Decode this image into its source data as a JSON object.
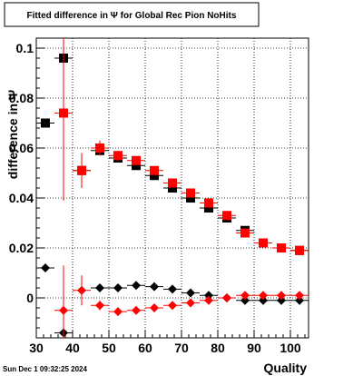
{
  "stamp": "Sun Dec  1 09:32:25 2024",
  "chart_data": {
    "type": "scatter",
    "title": "Fitted difference in  Ψ  for Global Rec Pion NoHits",
    "xlabel": "Quality",
    "ylabel": "difference in  Ψ",
    "xlim": [
      30,
      105
    ],
    "ylim": [
      -0.016,
      0.104
    ],
    "xticks": [
      30,
      40,
      50,
      60,
      70,
      80,
      90,
      100
    ],
    "yticks": [
      0,
      0.02,
      0.04,
      0.06,
      0.08,
      0.1
    ],
    "ytick_labels": [
      "0",
      "0.02",
      "0.04",
      "0.06",
      "0.08",
      "0.1"
    ],
    "grid": true,
    "series": [
      {
        "marker": "square",
        "color": "#000000",
        "x": [
          32.5,
          37.5,
          42.5,
          47.5,
          52.5,
          57.5,
          62.5,
          67.5,
          72.5,
          77.5,
          82.5,
          87.5,
          92.5,
          97.5,
          102.5
        ],
        "y": [
          0.07,
          0.096,
          0.051,
          0.059,
          0.056,
          0.053,
          0.049,
          0.044,
          0.04,
          0.036,
          0.032,
          0.027,
          0.022,
          0.02,
          0.019
        ],
        "yerr": [
          0,
          0.002,
          0.003,
          0.002,
          0.0015,
          0.0015,
          0.0015,
          0.0015,
          0.0015,
          0.0015,
          0.0015,
          0.0015,
          0.0015,
          0.0015,
          0.0015
        ]
      },
      {
        "marker": "square",
        "color": "#ff0000",
        "x": [
          37.5,
          42.5,
          47.5,
          52.5,
          57.5,
          62.5,
          67.5,
          72.5,
          77.5,
          82.5,
          87.5,
          92.5,
          97.5,
          102.5
        ],
        "y": [
          0.074,
          0.051,
          0.06,
          0.057,
          0.055,
          0.051,
          0.046,
          0.042,
          0.038,
          0.033,
          0.026,
          0.022,
          0.02,
          0.019
        ],
        "yerr": [
          0.035,
          0.007,
          0.003,
          0.002,
          0.0015,
          0.0015,
          0.0015,
          0.0015,
          0.0015,
          0.0015,
          0.0015,
          0.0015,
          0.0015,
          0.0015
        ]
      },
      {
        "marker": "diamond",
        "color": "#000000",
        "x": [
          32.5,
          37.5,
          47.5,
          52.5,
          57.5,
          62.5,
          67.5,
          72.5,
          77.5,
          82.5,
          87.5,
          92.5,
          97.5,
          102.5
        ],
        "y": [
          0.012,
          -0.014,
          0.004,
          0.004,
          0.005,
          0.0045,
          0.0035,
          0.002,
          0.001,
          0.0,
          -0.001,
          -0.001,
          -0.001,
          -0.001
        ],
        "yerr": [
          0,
          0.018,
          0.001,
          0.001,
          0.001,
          0.001,
          0.001,
          0.001,
          0.001,
          0.001,
          0.001,
          0.001,
          0.001,
          0.001
        ]
      },
      {
        "marker": "diamond",
        "color": "#ff0000",
        "x": [
          37.5,
          42.5,
          47.5,
          52.5,
          57.5,
          62.5,
          67.5,
          72.5,
          77.5,
          82.5,
          87.5,
          92.5,
          97.5,
          102.5
        ],
        "y": [
          -0.005,
          0.003,
          -0.003,
          -0.0055,
          -0.005,
          -0.004,
          -0.003,
          -0.002,
          -0.001,
          0.0,
          0.001,
          0.001,
          0.001,
          0.001
        ],
        "yerr": [
          0.018,
          0.006,
          0.002,
          0.0015,
          0.0015,
          0.0015,
          0.0015,
          0.0015,
          0.001,
          0.001,
          0.001,
          0.001,
          0.001,
          0.001
        ]
      }
    ]
  }
}
